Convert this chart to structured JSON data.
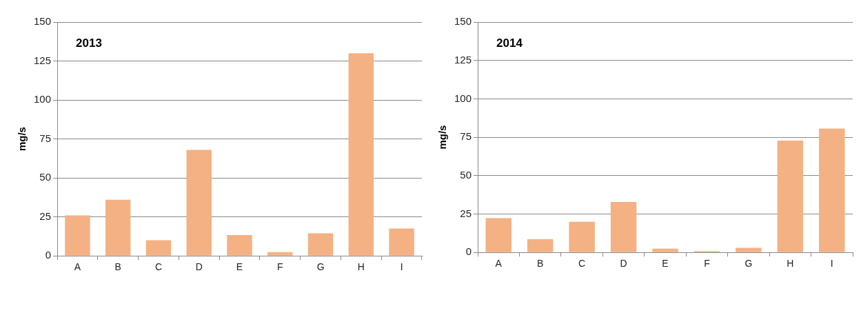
{
  "chart_data": [
    {
      "type": "bar",
      "title": "2013",
      "ylabel": "mg/s",
      "categories": [
        "A",
        "B",
        "C",
        "D",
        "E",
        "F",
        "G",
        "H",
        "I"
      ],
      "values": [
        26,
        36,
        10,
        68,
        13.3,
        2.4,
        14.5,
        130,
        17.6
      ],
      "color": "#f4b183",
      "ylim": [
        0,
        150
      ],
      "yticks": [
        0,
        25,
        50,
        75,
        100,
        125,
        150
      ],
      "grid": "y"
    },
    {
      "type": "bar",
      "title": "2014",
      "ylabel": "mg/s",
      "categories": [
        "A",
        "B",
        "C",
        "D",
        "E",
        "F",
        "G",
        "H",
        "I"
      ],
      "values": [
        22.3,
        8.6,
        20,
        32.8,
        2.4,
        0.9,
        3,
        72.8,
        80.7
      ],
      "color": "#f4b183",
      "ylim": [
        0,
        150
      ],
      "yticks": [
        0,
        25,
        50,
        75,
        100,
        125,
        150
      ],
      "grid": "y"
    }
  ]
}
